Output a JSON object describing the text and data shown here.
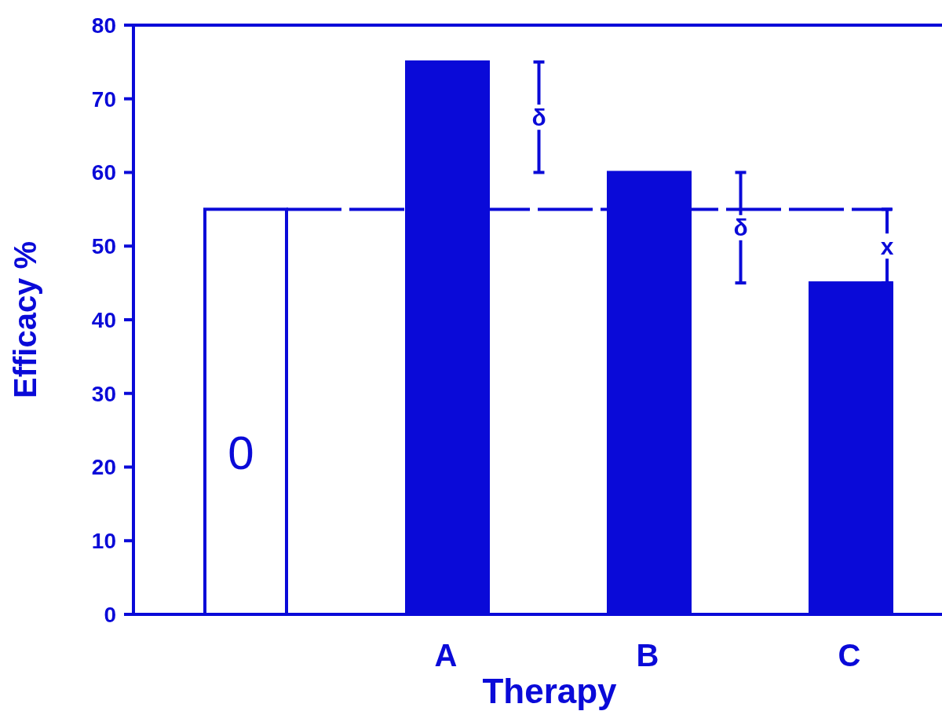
{
  "chart_data": {
    "type": "bar",
    "xlabel": "Therapy",
    "ylabel": "Efficacy %",
    "categories": [
      null,
      "A",
      "B",
      "C"
    ],
    "values": [
      55,
      75,
      60,
      45
    ],
    "colors": [
      "#ffffff",
      "#0a0ad8",
      "#0a0ad8",
      "#0a0ad8"
    ],
    "ylim": [
      0,
      80
    ],
    "yticks": [
      0,
      10,
      20,
      30,
      40,
      50,
      60,
      70,
      80
    ],
    "ref_lines": [
      {
        "axis": "y",
        "value": 55,
        "color": "#0a0ad8",
        "line_style": "dashed"
      }
    ],
    "annotations": [
      "0",
      "δ",
      "δ",
      "x"
    ]
  }
}
